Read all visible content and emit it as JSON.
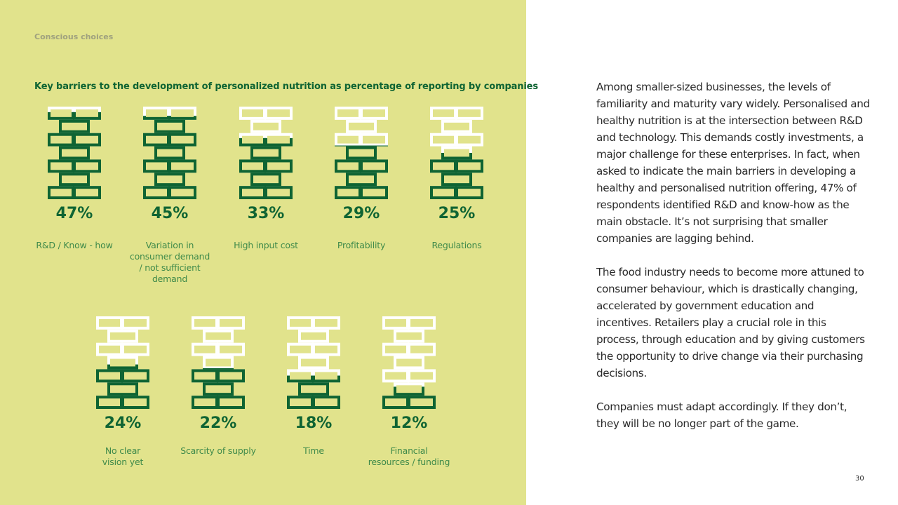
{
  "section_label": "Conscious choices",
  "page_number": "30",
  "colors": {
    "panel": "#e1e38c",
    "dark_green": "#0f6433",
    "label_green": "#3f8a4a",
    "white": "#ffffff"
  },
  "chart_data": {
    "type": "pictogram",
    "title": "Key barriers to the development of personalized nutrition as percentage of reporting by companies",
    "unit": "%",
    "categories": [
      "R&D / Know - how",
      "Variation in consumer demand / not sufficient demand",
      "High input cost",
      "Profitability",
      "Regulations",
      "No clear vision yet",
      "Scarcity of supply",
      "Time",
      "Financial resources / funding"
    ],
    "values": [
      47,
      45,
      33,
      29,
      25,
      24,
      22,
      18,
      12
    ],
    "value_labels": [
      "47%",
      "45%",
      "33%",
      "29%",
      "25%",
      "24%",
      "22%",
      "18%",
      "12%"
    ],
    "label_lines": [
      [
        "R&D / Know - how"
      ],
      [
        "Variation in",
        "consumer demand",
        "/ not sufficient",
        "demand"
      ],
      [
        "High input cost"
      ],
      [
        "Profitability"
      ],
      [
        "Regulations"
      ],
      [
        "No clear",
        "vision yet"
      ],
      [
        "Scarcity of supply"
      ],
      [
        "Time"
      ],
      [
        "Financial",
        "resources / funding"
      ]
    ]
  },
  "body_paragraphs": [
    "Among smaller-sized businesses, the levels of familiarity and maturity vary widely. Personalised and healthy nutrition is at the intersection between R&D and technology. This demands costly investments, a major challenge for these enterprises. In fact, when asked to indicate the main barriers in developing a healthy and personalised nutrition offering, 47% of respondents identified R&D and know-how as the main obstacle. It’s not surprising that smaller companies are lagging behind.",
    "The food industry needs to become more attuned to consumer behaviour, which is drastically changing, accelerated by government education and incentives. Retailers play a crucial role in this process, through education and by giving customers the opportunity to drive change via their purchasing decisions.",
    "Companies must adapt accordingly. If they don’t, they will be no longer part of the game."
  ]
}
